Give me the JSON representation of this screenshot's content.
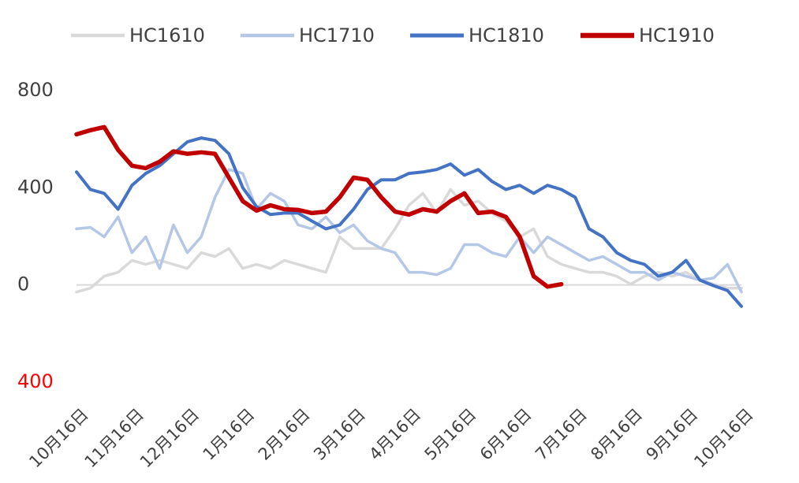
{
  "chart_data": {
    "type": "line",
    "categories": [
      "10月16日",
      null,
      null,
      null,
      "11月16日",
      null,
      null,
      null,
      "12月16日",
      null,
      null,
      null,
      "1月16日",
      null,
      null,
      null,
      "2月16日",
      null,
      null,
      null,
      "3月16日",
      null,
      null,
      null,
      "4月16日",
      null,
      null,
      null,
      "5月16日",
      null,
      null,
      null,
      "6月16日",
      null,
      null,
      null,
      "7月16日",
      null,
      null,
      null,
      "8月16日",
      null,
      null,
      null,
      "9月16日",
      null,
      null,
      null,
      "10月16日"
    ],
    "series": [
      {
        "name": "HC1610",
        "color": "#d9d9d9",
        "values": [
          -29,
          -13,
          36,
          52,
          101,
          85,
          101,
          85,
          68,
          133,
          117,
          150,
          68,
          85,
          68,
          101,
          85,
          68,
          52,
          198,
          150,
          150,
          150,
          231,
          328,
          377,
          296,
          393,
          328,
          345,
          296,
          263,
          198,
          231,
          117,
          85,
          68,
          52,
          52,
          36,
          3,
          36,
          52,
          36,
          52,
          20,
          3,
          -13,
          -13
        ]
      },
      {
        "name": "HC1710",
        "color": "#b4c7e7",
        "values": [
          231,
          237,
          198,
          280,
          133,
          198,
          68,
          247,
          133,
          198,
          361,
          475,
          459,
          312,
          377,
          345,
          247,
          231,
          280,
          215,
          247,
          182,
          150,
          133,
          52,
          52,
          42,
          68,
          166,
          166,
          133,
          117,
          198,
          133,
          198,
          166,
          133,
          101,
          117,
          85,
          52,
          52,
          20,
          52,
          36,
          20,
          29,
          85,
          -29
        ]
      },
      {
        "name": "HC1810",
        "color": "#4472c4",
        "values": [
          465,
          393,
          377,
          312,
          410,
          459,
          491,
          540,
          589,
          605,
          595,
          540,
          400,
          322,
          290,
          296,
          296,
          263,
          231,
          247,
          312,
          393,
          433,
          433,
          459,
          465,
          475,
          498,
          452,
          475,
          426,
          393,
          410,
          377,
          410,
          393,
          361,
          231,
          198,
          133,
          101,
          85,
          36,
          52,
          101,
          20,
          -3,
          -23,
          -88
        ]
      },
      {
        "name": "HC1910",
        "color": "#c00000",
        "values": [
          620,
          637,
          650,
          556,
          491,
          481,
          507,
          550,
          540,
          546,
          540,
          442,
          345,
          306,
          328,
          312,
          309,
          296,
          302,
          361,
          442,
          433,
          361,
          302,
          290,
          312,
          302,
          345,
          377,
          296,
          302,
          280,
          198,
          36,
          -7,
          3,
          null,
          null,
          null,
          null,
          null,
          null,
          null,
          null,
          null,
          null,
          null,
          null,
          null
        ]
      }
    ],
    "ylim": [
      -400,
      800
    ],
    "yticks": [
      800,
      400,
      0,
      {
        "value": -400,
        "label": "400",
        "color": "#ff0000"
      }
    ],
    "legend": "top"
  }
}
